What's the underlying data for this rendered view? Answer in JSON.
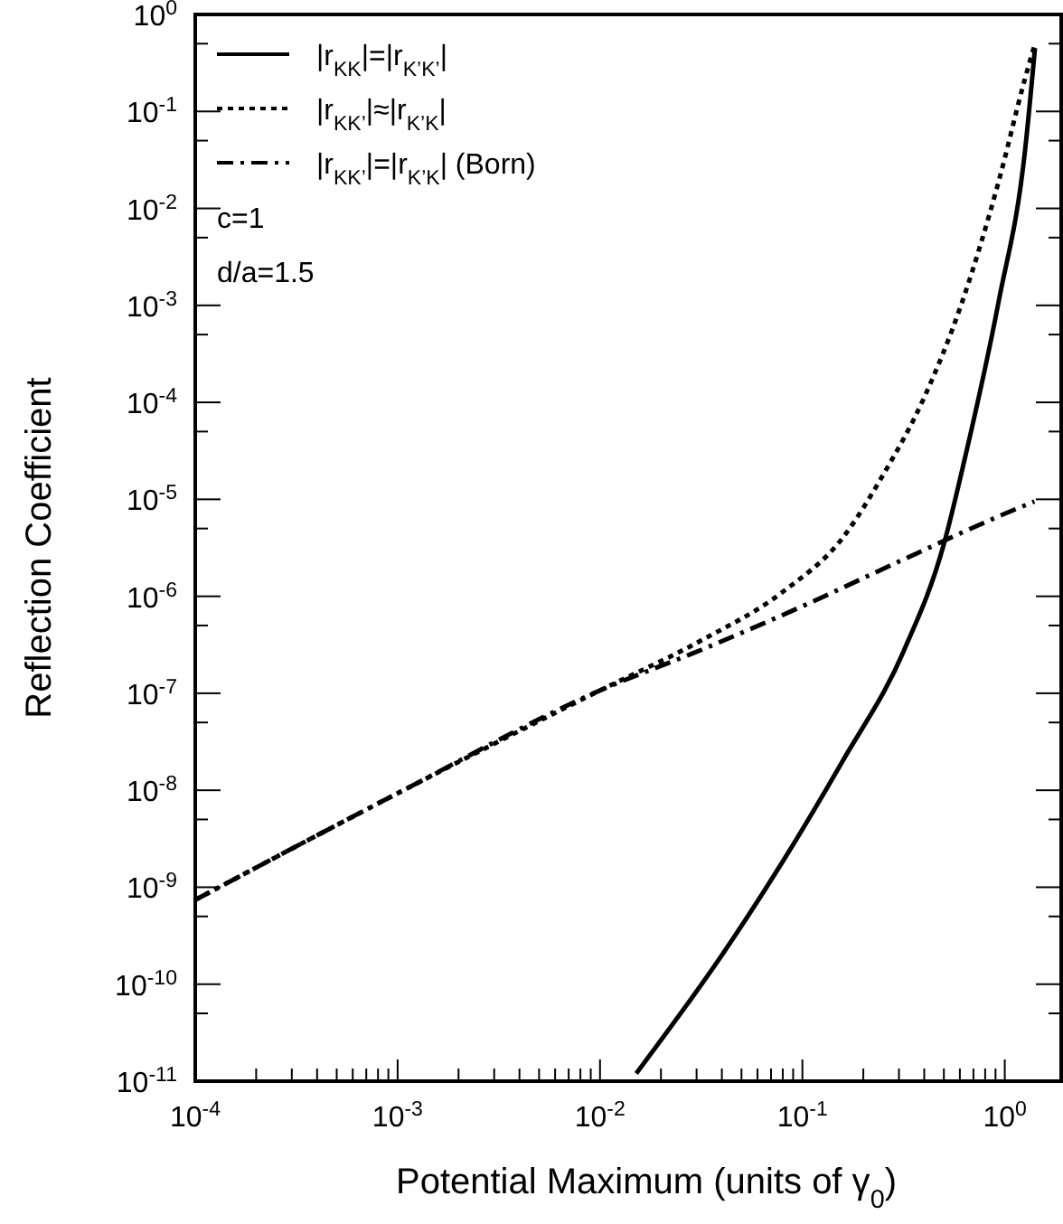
{
  "chart_data": {
    "type": "line",
    "xlabel": "Potential Maximum (units of γ$_{0}$)",
    "ylabel": "Reflection Coefficient",
    "log": "xy",
    "grid": false,
    "legend": "top left",
    "marker": "none",
    "xlim": [
      0.0001,
      1.9
    ],
    "ylim": [
      1e-11,
      1
    ],
    "xticks": [
      {
        "value": 0.0001,
        "label": "10$^{-4}$"
      },
      {
        "value": 0.0002,
        "label": null
      },
      {
        "value": 0.0003,
        "label": null
      },
      {
        "value": 0.0004,
        "label": null
      },
      {
        "value": 0.0005,
        "label": null
      },
      {
        "value": 0.0006,
        "label": null
      },
      {
        "value": 0.0007,
        "label": null
      },
      {
        "value": 0.0008,
        "label": null
      },
      {
        "value": 0.0009,
        "label": null
      },
      {
        "value": 0.001,
        "label": "10$^{-3}$"
      },
      {
        "value": 0.002,
        "label": null
      },
      {
        "value": 0.003,
        "label": null
      },
      {
        "value": 0.004,
        "label": null
      },
      {
        "value": 0.005,
        "label": null
      },
      {
        "value": 0.006,
        "label": null
      },
      {
        "value": 0.007,
        "label": null
      },
      {
        "value": 0.008,
        "label": null
      },
      {
        "value": 0.009,
        "label": null
      },
      {
        "value": 0.01,
        "label": "10$^{-2}$"
      },
      {
        "value": 0.02,
        "label": null
      },
      {
        "value": 0.03,
        "label": null
      },
      {
        "value": 0.04,
        "label": null
      },
      {
        "value": 0.05,
        "label": null
      },
      {
        "value": 0.06,
        "label": null
      },
      {
        "value": 0.07,
        "label": null
      },
      {
        "value": 0.08,
        "label": null
      },
      {
        "value": 0.09,
        "label": null
      },
      {
        "value": 0.1,
        "label": "10$^{-1}$"
      },
      {
        "value": 0.2,
        "label": null
      },
      {
        "value": 0.3,
        "label": null
      },
      {
        "value": 0.4,
        "label": null
      },
      {
        "value": 0.5,
        "label": null
      },
      {
        "value": 0.6,
        "label": null
      },
      {
        "value": 0.7,
        "label": null
      },
      {
        "value": 0.8,
        "label": null
      },
      {
        "value": 0.9,
        "label": null
      },
      {
        "value": 1,
        "label": "10$^{0}$"
      }
    ],
    "yticks": [
      {
        "value": 1e-11,
        "label": "10$^{-11}$"
      },
      {
        "value": 5e-11,
        "label": null
      },
      {
        "value": 1e-10,
        "label": "10$^{-10}$"
      },
      {
        "value": 5e-10,
        "label": null
      },
      {
        "value": 1e-09,
        "label": "10$^{-9}$"
      },
      {
        "value": 5e-09,
        "label": null
      },
      {
        "value": 1e-08,
        "label": "10$^{-8}$"
      },
      {
        "value": 5e-08,
        "label": null
      },
      {
        "value": 1e-07,
        "label": "10$^{-7}$"
      },
      {
        "value": 5e-07,
        "label": null
      },
      {
        "value": 1e-06,
        "label": "10$^{-6}$"
      },
      {
        "value": 5e-06,
        "label": null
      },
      {
        "value": 1e-05,
        "label": "10$^{-5}$"
      },
      {
        "value": 5e-05,
        "label": null
      },
      {
        "value": 0.0001,
        "label": "10$^{-4}$"
      },
      {
        "value": 0.0005,
        "label": null
      },
      {
        "value": 0.001,
        "label": "10$^{-3}$"
      },
      {
        "value": 0.005,
        "label": null
      },
      {
        "value": 0.01,
        "label": "10$^{-2}$"
      },
      {
        "value": 0.05,
        "label": null
      },
      {
        "value": 0.1,
        "label": "10$^{-1}$"
      },
      {
        "value": 0.5,
        "label": null
      },
      {
        "value": 1,
        "label": "10$^{0}$"
      }
    ],
    "series": [
      {
        "name": "|r$_{KK}$|=|r$_{K’K’}$|",
        "color": "#000000",
        "line_style": "solid",
        "x": [
          0.0151,
          0.0407,
          0.0794,
          0.158,
          0.316,
          0.501,
          0.631,
          0.933,
          1.26,
          1.41
        ],
        "values": [
          1.2e-11,
          2.1e-10,
          1.8e-09,
          2e-08,
          2.7e-07,
          3.5e-06,
          2.5e-05,
          0.0011,
          0.04,
          0.45
        ]
      },
      {
        "name": "|r$_{KK’}$|≈|r$_{K’K}$|",
        "color": "#000000",
        "line_style": "dotted",
        "x": [
          0.0001,
          0.001,
          0.01,
          0.0316,
          0.0794,
          0.158,
          0.251,
          0.398,
          0.617,
          0.933,
          1.26,
          1.41
        ],
        "values": [
          7.4e-10,
          9.3e-09,
          1.07e-07,
          3.5e-07,
          1.1e-06,
          4e-06,
          1.8e-05,
          0.00011,
          0.0011,
          0.019,
          0.22,
          0.5
        ]
      },
      {
        "name": "|r$_{KK’}$|=|r$_{K’K}$| (Born)",
        "color": "#000000",
        "line_style": "dashdot",
        "x": [
          0.0001,
          0.001,
          0.01,
          0.0316,
          0.1,
          0.316,
          1,
          1.4
        ],
        "values": [
          7.4e-10,
          9.3e-09,
          1.07e-07,
          2.8e-07,
          7.9e-07,
          2.4e-06,
          7.1e-06,
          9.5e-06
        ]
      }
    ],
    "annotations": [
      "c=1",
      "d/a=1.5"
    ]
  }
}
